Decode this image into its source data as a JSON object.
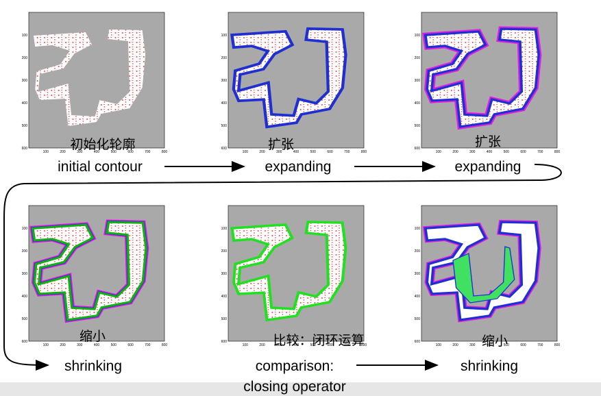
{
  "axes": {
    "yticks": [
      100,
      200,
      300,
      400,
      500,
      600
    ],
    "xticks": [
      100,
      200,
      300,
      400,
      500,
      600,
      700,
      800
    ]
  },
  "panels": [
    {
      "caption_cn": "初始化轮廓",
      "caption_en": "initial contour"
    },
    {
      "caption_cn": "扩张",
      "caption_en": "expanding"
    },
    {
      "caption_cn": "扩张",
      "caption_en": "expanding"
    },
    {
      "caption_cn": "缩小",
      "caption_en": "shrinking"
    },
    {
      "caption_cn": "比较：闭环运算",
      "caption_en": "comparison:",
      "caption_en_2": "closing operator"
    },
    {
      "caption_cn": "缩小",
      "caption_en": "shrinking"
    }
  ]
}
